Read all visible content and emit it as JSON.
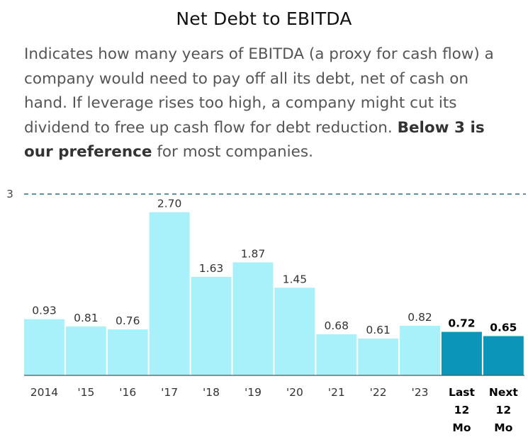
{
  "title": "Net Debt to EBITDA",
  "description": {
    "text_before": "Indicates how many years of EBITDA (a proxy for cash flow) a company would need to pay off all its debt, net of cash on hand. If leverage rises too high, a company might cut its dividend to free up cash flow for debt reduction. ",
    "bold": "Below 3 is our preference",
    "text_after": " for most companies."
  },
  "colors": {
    "bar": "#a8f0fa",
    "bar_highlight": "#0b95b8",
    "reference_line": "#2f6b80",
    "axis": "#555555"
  },
  "chart_data": {
    "type": "bar",
    "categories": [
      "2014",
      "'15",
      "'16",
      "'17",
      "'18",
      "'19",
      "'20",
      "'21",
      "'22",
      "'23",
      "Last 12 Mo",
      "Next 12 Mo"
    ],
    "category_lines": [
      [
        "2014"
      ],
      [
        "'15"
      ],
      [
        "'16"
      ],
      [
        "'17"
      ],
      [
        "'18"
      ],
      [
        "'19"
      ],
      [
        "'20"
      ],
      [
        "'21"
      ],
      [
        "'22"
      ],
      [
        "'23"
      ],
      [
        "Last",
        "12",
        "Mo"
      ],
      [
        "Next",
        "12",
        "Mo"
      ]
    ],
    "values": [
      0.93,
      0.81,
      0.76,
      2.7,
      1.63,
      1.87,
      1.45,
      0.68,
      0.61,
      0.82,
      0.72,
      0.65
    ],
    "value_labels": [
      "0.93",
      "0.81",
      "0.76",
      "2.70",
      "1.63",
      "1.87",
      "1.45",
      "0.68",
      "0.61",
      "0.82",
      "0.72",
      "0.65"
    ],
    "highlighted": [
      false,
      false,
      false,
      false,
      false,
      false,
      false,
      false,
      false,
      false,
      true,
      true
    ],
    "reference_line": {
      "value": 3,
      "label": "3",
      "style": "dashed"
    },
    "ylim": [
      0,
      3
    ],
    "xlabel": "",
    "ylabel": "",
    "grid": false
  }
}
